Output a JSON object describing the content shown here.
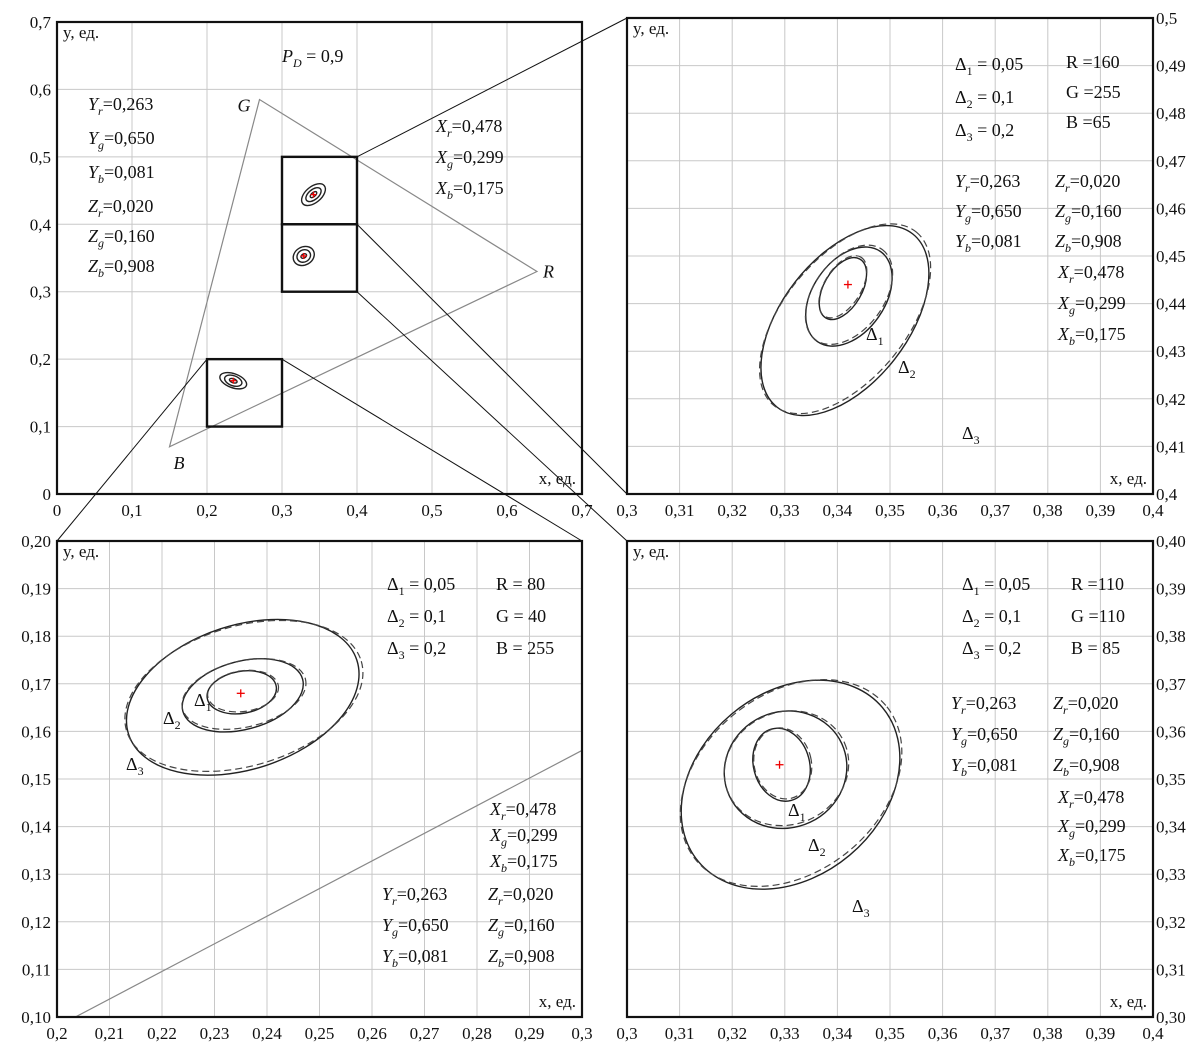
{
  "chart_data": [
    {
      "id": "overview",
      "type": "scatter",
      "ylabel": "y, ед.",
      "xlabel": "x, ед.",
      "xlim": [
        0,
        0.7
      ],
      "ylim": [
        0,
        0.7
      ],
      "xticks": [
        "0",
        "0,1",
        "0,2",
        "0,3",
        "0,4",
        "0,5",
        "0,6",
        "0,7"
      ],
      "yticks": [
        "0",
        "0,1",
        "0,2",
        "0,3",
        "0,4",
        "0,5",
        "0,6",
        "0,7"
      ],
      "title": "P_D = 0,9",
      "triangle": {
        "R": [
          0.64,
          0.33
        ],
        "G": [
          0.27,
          0.585
        ],
        "B": [
          0.15,
          0.07
        ],
        "labels": {
          "R": "R",
          "G": "G",
          "B": "B"
        }
      },
      "zoom_boxes": [
        {
          "x": [
            0.3,
            0.4
          ],
          "y": [
            0.4,
            0.5
          ]
        },
        {
          "x": [
            0.3,
            0.4
          ],
          "y": [
            0.3,
            0.4
          ]
        },
        {
          "x": [
            0.2,
            0.3
          ],
          "y": [
            0.1,
            0.2
          ]
        }
      ],
      "ellipse_centers": [
        [
          0.342,
          0.444
        ],
        [
          0.329,
          0.353
        ],
        [
          0.235,
          0.168
        ]
      ],
      "left_text": [
        "Y_r=0,263",
        "Y_g=0,650",
        "Y_b=0,081",
        "Z_r=0,020",
        "Z_g=0,160",
        "Z_b=0,908"
      ],
      "right_text": [
        "X_r=0,478",
        "X_g=0,299",
        "X_b=0,175"
      ]
    },
    {
      "id": "zoom-top-right",
      "type": "scatter",
      "ylabel": "y, ед.",
      "xlabel": "x, ед.",
      "xlim": [
        0.3,
        0.4
      ],
      "ylim": [
        0.4,
        0.5
      ],
      "xticks": [
        "0,3",
        "0,31",
        "0,32",
        "0,33",
        "0,34",
        "0,35",
        "0,36",
        "0,37",
        "0,38",
        "0,39",
        "0,4"
      ],
      "yticks": [
        "0,4",
        "0,41",
        "0,42",
        "0,43",
        "0,44",
        "0,45",
        "0,46",
        "0,47",
        "0,48",
        "0,49",
        "0,5"
      ],
      "center": [
        0.342,
        0.444
      ],
      "deltas": [
        "Δ1 = 0,05",
        "Δ2 = 0,1",
        "Δ3 = 0,2"
      ],
      "rgb": [
        "R =160",
        "G =255",
        "B =65"
      ],
      "Y": [
        "Y_r=0,263",
        "Y_g=0,650",
        "Y_b=0,081"
      ],
      "Z": [
        "Z_r=0,020",
        "Z_g=0,160",
        "Z_b=0,908"
      ],
      "X": [
        "X_r=0,478",
        "X_g=0,299",
        "X_b=0,175"
      ],
      "ellipse_labels": [
        "Δ1",
        "Δ2",
        "Δ3"
      ]
    },
    {
      "id": "zoom-bottom-left",
      "type": "scatter",
      "ylabel": "y, ед.",
      "xlabel": "x, ед.",
      "xlim": [
        0.2,
        0.3
      ],
      "ylim": [
        0.1,
        0.2
      ],
      "xticks": [
        "0,2",
        "0,21",
        "0,22",
        "0,23",
        "0,24",
        "0,25",
        "0,26",
        "0,27",
        "0,28",
        "0,29",
        "0,3"
      ],
      "yticks": [
        "0,10",
        "0,11",
        "0,12",
        "0,13",
        "0,14",
        "0,15",
        "0,16",
        "0,17",
        "0,18",
        "0,19",
        "0,20"
      ],
      "center": [
        0.235,
        0.168
      ],
      "deltas": [
        "Δ1 = 0,05",
        "Δ2 = 0,1",
        "Δ3 = 0,2"
      ],
      "rgb": [
        "R = 80",
        "G = 40",
        "B = 255"
      ],
      "Y": [
        "Y_r=0,263",
        "Y_g=0,650",
        "Y_b=0,081"
      ],
      "Z": [
        "Z_r=0,020",
        "Z_g=0,160",
        "Z_b=0,908"
      ],
      "X": [
        "X_r=0,478",
        "X_g=0,299",
        "X_b=0,175"
      ],
      "ellipse_labels": [
        "Δ1",
        "Δ2",
        "Δ3"
      ]
    },
    {
      "id": "zoom-bottom-right",
      "type": "scatter",
      "ylabel": "y, ед.",
      "xlabel": "x, ед.",
      "xlim": [
        0.3,
        0.4
      ],
      "ylim": [
        0.3,
        0.4
      ],
      "xticks": [
        "0,3",
        "0,31",
        "0,32",
        "0,33",
        "0,34",
        "0,35",
        "0,36",
        "0,37",
        "0,38",
        "0,39",
        "0,4"
      ],
      "yticks": [
        "0,30",
        "0,31",
        "0,32",
        "0,33",
        "0,34",
        "0,35",
        "0,36",
        "0,37",
        "0,38",
        "0,39",
        "0,40"
      ],
      "center": [
        0.329,
        0.353
      ],
      "deltas": [
        "Δ1 = 0,05",
        "Δ2 = 0,1",
        "Δ3 = 0,2"
      ],
      "rgb": [
        "R =110",
        "G =110",
        "B = 85"
      ],
      "Y": [
        "Y_r=0,263",
        "Y_g=0,650",
        "Y_b=0,081"
      ],
      "Z": [
        "Z_r=0,020",
        "Z_g=0,160",
        "Z_b=0,908"
      ],
      "X": [
        "X_r=0,478",
        "X_g=0,299",
        "X_b=0,175"
      ],
      "ellipse_labels": [
        "Δ1",
        "Δ2",
        "Δ3"
      ]
    }
  ]
}
